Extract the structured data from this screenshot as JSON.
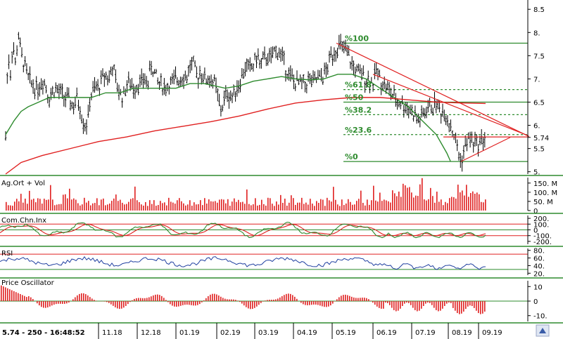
{
  "status_bar": {
    "price": "5.74",
    "volume": "250",
    "time": "16:48:52"
  },
  "months": [
    "11.18",
    "12.18",
    "01.19",
    "02.19",
    "03.19",
    "04.19",
    "05.19",
    "06.19",
    "07.19",
    "08.19",
    "09.19"
  ],
  "colors": {
    "price_bar": "#000000",
    "ma_short": "#2e8b2e",
    "ma_long": "#e02020",
    "trend_line": "#e02020",
    "fib": "#2e8b2e",
    "volume": "#e02020",
    "cci": "#2e8b2e",
    "cci_signal": "#e02020",
    "rsi": "#1f3fa0",
    "osc": "#e02020",
    "panel_border": "#2e8b2e"
  },
  "chart_data": [
    {
      "type": "line",
      "panel": "price",
      "y_ticks": [
        "8.5",
        "8.",
        "7.5",
        "7.",
        "6.5",
        "6.",
        "5.74",
        "5.5",
        "5."
      ],
      "ylim": [
        4.95,
        8.7
      ],
      "last_price": 5.74,
      "fibonacci_levels": [
        {
          "label": "%100",
          "price": 7.77
        },
        {
          "label": "%61.8",
          "price": 6.77
        },
        {
          "label": "%50",
          "price": 6.5
        },
        {
          "label": "%38.2",
          "price": 6.23
        },
        {
          "label": "%23.6",
          "price": 5.8
        },
        {
          "label": "%0",
          "price": 5.22
        }
      ],
      "series": [
        {
          "points": [
            [
              10,
              7.0
            ],
            [
              12,
              7.5
            ],
            [
              15,
              7.1
            ],
            [
              18,
              7.8
            ],
            [
              22,
              7.3
            ],
            [
              26,
              8.0
            ],
            [
              30,
              7.5
            ],
            [
              35,
              7.3
            ],
            [
              40,
              7.0
            ],
            [
              45,
              6.9
            ],
            [
              52,
              6.8
            ],
            [
              58,
              6.9
            ],
            [
              62,
              7.0
            ],
            [
              70,
              6.6
            ],
            [
              78,
              6.8
            ],
            [
              85,
              6.7
            ],
            [
              92,
              6.6
            ],
            [
              100,
              6.5
            ],
            [
              105,
              6.4
            ],
            [
              110,
              6.6
            ],
            [
              115,
              6.3
            ],
            [
              120,
              6.0
            ],
            [
              125,
              6.1
            ],
            [
              128,
              6.6
            ],
            [
              135,
              6.8
            ],
            [
              140,
              6.8
            ],
            [
              145,
              7.0
            ],
            [
              150,
              7.1
            ],
            [
              155,
              7.0
            ],
            [
              160,
              7.3
            ],
            [
              165,
              6.9
            ],
            [
              170,
              6.7
            ],
            [
              175,
              6.6
            ],
            [
              180,
              6.9
            ],
            [
              185,
              6.9
            ],
            [
              190,
              6.8
            ],
            [
              195,
              6.9
            ],
            [
              200,
              6.9
            ],
            [
              205,
              7.0
            ],
            [
              210,
              6.9
            ],
            [
              215,
              7.3
            ],
            [
              220,
              7.1
            ],
            [
              225,
              6.9
            ],
            [
              230,
              6.9
            ],
            [
              235,
              6.8
            ],
            [
              240,
              6.9
            ],
            [
              245,
              6.9
            ],
            [
              250,
              7.0
            ],
            [
              255,
              7.0
            ],
            [
              260,
              7.1
            ],
            [
              265,
              7.0
            ],
            [
              270,
              7.3
            ],
            [
              275,
              7.3
            ],
            [
              280,
              7.0
            ],
            [
              285,
              7.2
            ],
            [
              290,
              7.0
            ],
            [
              295,
              7.0
            ],
            [
              300,
              7.0
            ],
            [
              305,
              6.9
            ],
            [
              310,
              6.6
            ],
            [
              313,
              6.3
            ],
            [
              318,
              6.5
            ],
            [
              322,
              6.7
            ],
            [
              330,
              6.6
            ],
            [
              335,
              6.8
            ],
            [
              340,
              6.9
            ],
            [
              345,
              7.1
            ],
            [
              350,
              7.3
            ],
            [
              355,
              7.2
            ],
            [
              360,
              7.3
            ],
            [
              365,
              7.5
            ],
            [
              370,
              7.3
            ],
            [
              375,
              7.4
            ],
            [
              380,
              7.5
            ],
            [
              385,
              7.4
            ],
            [
              390,
              7.6
            ],
            [
              395,
              7.6
            ],
            [
              400,
              7.5
            ],
            [
              405,
              7.3
            ],
            [
              410,
              7.1
            ],
            [
              415,
              7.0
            ],
            [
              420,
              6.9
            ],
            [
              425,
              6.9
            ],
            [
              430,
              6.9
            ],
            [
              435,
              6.9
            ],
            [
              440,
              7.0
            ],
            [
              445,
              6.9
            ],
            [
              450,
              7.0
            ],
            [
              455,
              7.0
            ],
            [
              460,
              7.1
            ],
            [
              465,
              7.2
            ],
            [
              470,
              7.5
            ],
            [
              475,
              7.6
            ],
            [
              480,
              7.7
            ],
            [
              485,
              7.7
            ],
            [
              490,
              7.6
            ],
            [
              495,
              7.5
            ],
            [
              500,
              7.3
            ],
            [
              505,
              7.2
            ],
            [
              510,
              7.1
            ],
            [
              515,
              7.1
            ],
            [
              520,
              7.0
            ],
            [
              525,
              7.0
            ],
            [
              530,
              6.9
            ],
            [
              535,
              7.2
            ],
            [
              540,
              7.0
            ],
            [
              545,
              6.9
            ],
            [
              550,
              6.8
            ],
            [
              555,
              6.7
            ],
            [
              560,
              6.6
            ],
            [
              565,
              6.5
            ],
            [
              570,
              6.5
            ],
            [
              575,
              6.4
            ],
            [
              580,
              6.4
            ],
            [
              585,
              6.3
            ],
            [
              590,
              6.2
            ],
            [
              595,
              6.1
            ],
            [
              600,
              6.2
            ],
            [
              605,
              6.3
            ],
            [
              610,
              6.4
            ],
            [
              615,
              6.4
            ],
            [
              620,
              6.5
            ],
            [
              625,
              6.3
            ],
            [
              630,
              6.3
            ],
            [
              635,
              6.2
            ],
            [
              640,
              6.0
            ],
            [
              645,
              5.8
            ],
            [
              650,
              5.5
            ],
            [
              655,
              5.2
            ],
            [
              660,
              5.5
            ],
            [
              665,
              5.7
            ],
            [
              670,
              5.7
            ],
            [
              675,
              5.6
            ],
            [
              680,
              5.6
            ],
            [
              685,
              5.7
            ],
            [
              690,
              5.74
            ]
          ]
        },
        {
          "name": "",
          "points": [
            [
              8,
              5.8
            ],
            [
              20,
              6.1
            ],
            [
              30,
              6.3
            ],
            [
              40,
              6.4
            ],
            [
              55,
              6.5
            ],
            [
              70,
              6.6
            ],
            [
              90,
              6.6
            ],
            [
              110,
              6.6
            ],
            [
              130,
              6.6
            ],
            [
              150,
              6.7
            ],
            [
              170,
              6.7
            ],
            [
              190,
              6.8
            ],
            [
              210,
              6.8
            ],
            [
              230,
              6.8
            ],
            [
              250,
              6.8
            ],
            [
              270,
              6.9
            ],
            [
              290,
              6.9
            ],
            [
              305,
              6.85
            ],
            [
              320,
              6.8
            ],
            [
              340,
              6.85
            ],
            [
              360,
              6.95
            ],
            [
              380,
              7.0
            ],
            [
              400,
              7.05
            ],
            [
              420,
              7.0
            ],
            [
              440,
              6.98
            ],
            [
              460,
              7.0
            ],
            [
              480,
              7.1
            ],
            [
              500,
              7.1
            ],
            [
              520,
              7.0
            ],
            [
              540,
              6.8
            ],
            [
              560,
              6.6
            ],
            [
              580,
              6.4
            ],
            [
              600,
              6.1
            ],
            [
              620,
              5.8
            ],
            [
              635,
              5.4
            ],
            [
              640,
              5.23
            ]
          ]
        },
        {
          "name": "",
          "points": [
            [
              8,
              4.95
            ],
            [
              30,
              5.2
            ],
            [
              60,
              5.35
            ],
            [
              100,
              5.5
            ],
            [
              140,
              5.65
            ],
            [
              180,
              5.75
            ],
            [
              220,
              5.88
            ],
            [
              260,
              5.98
            ],
            [
              300,
              6.08
            ],
            [
              340,
              6.2
            ],
            [
              380,
              6.35
            ],
            [
              420,
              6.48
            ],
            [
              460,
              6.55
            ],
            [
              500,
              6.6
            ],
            [
              540,
              6.6
            ],
            [
              580,
              6.55
            ],
            [
              620,
              6.5
            ],
            [
              660,
              6.48
            ],
            [
              690,
              6.47
            ]
          ]
        }
      ],
      "trend_lines": [
        {
          "from": [
            478,
            7.77
          ],
          "to": [
            760,
            5.7
          ]
        },
        {
          "from": [
            530,
            7.1
          ],
          "to": [
            750,
            5.78
          ]
        },
        {
          "from": [
            630,
            5.75
          ],
          "to": [
            750,
            5.75
          ]
        },
        {
          "from": [
            655,
            5.22
          ],
          "to": [
            725,
            5.74
          ]
        }
      ]
    },
    {
      "type": "bar",
      "panel": "volume",
      "title": "Ag.Ort + Vol",
      "y_ticks": [
        "150. M",
        "100. M",
        "50. M",
        "0"
      ],
      "ylim": [
        0,
        180
      ]
    },
    {
      "type": "line",
      "panel": "cci",
      "title": "Com.Chn.Inx",
      "y_ticks": [
        "200.",
        "100.",
        "0",
        "-100.",
        "-200."
      ],
      "ylim": [
        -250,
        250
      ]
    },
    {
      "type": "line",
      "panel": "rsi",
      "title": "RSI",
      "y_ticks": [
        "80.",
        "60.",
        "40.",
        "20."
      ],
      "ylim": [
        15,
        85
      ]
    },
    {
      "type": "bar",
      "panel": "oscillator",
      "title": "Price Oscillator",
      "y_ticks": [
        "10",
        "0",
        "-10."
      ],
      "ylim": [
        -14,
        14
      ]
    }
  ]
}
